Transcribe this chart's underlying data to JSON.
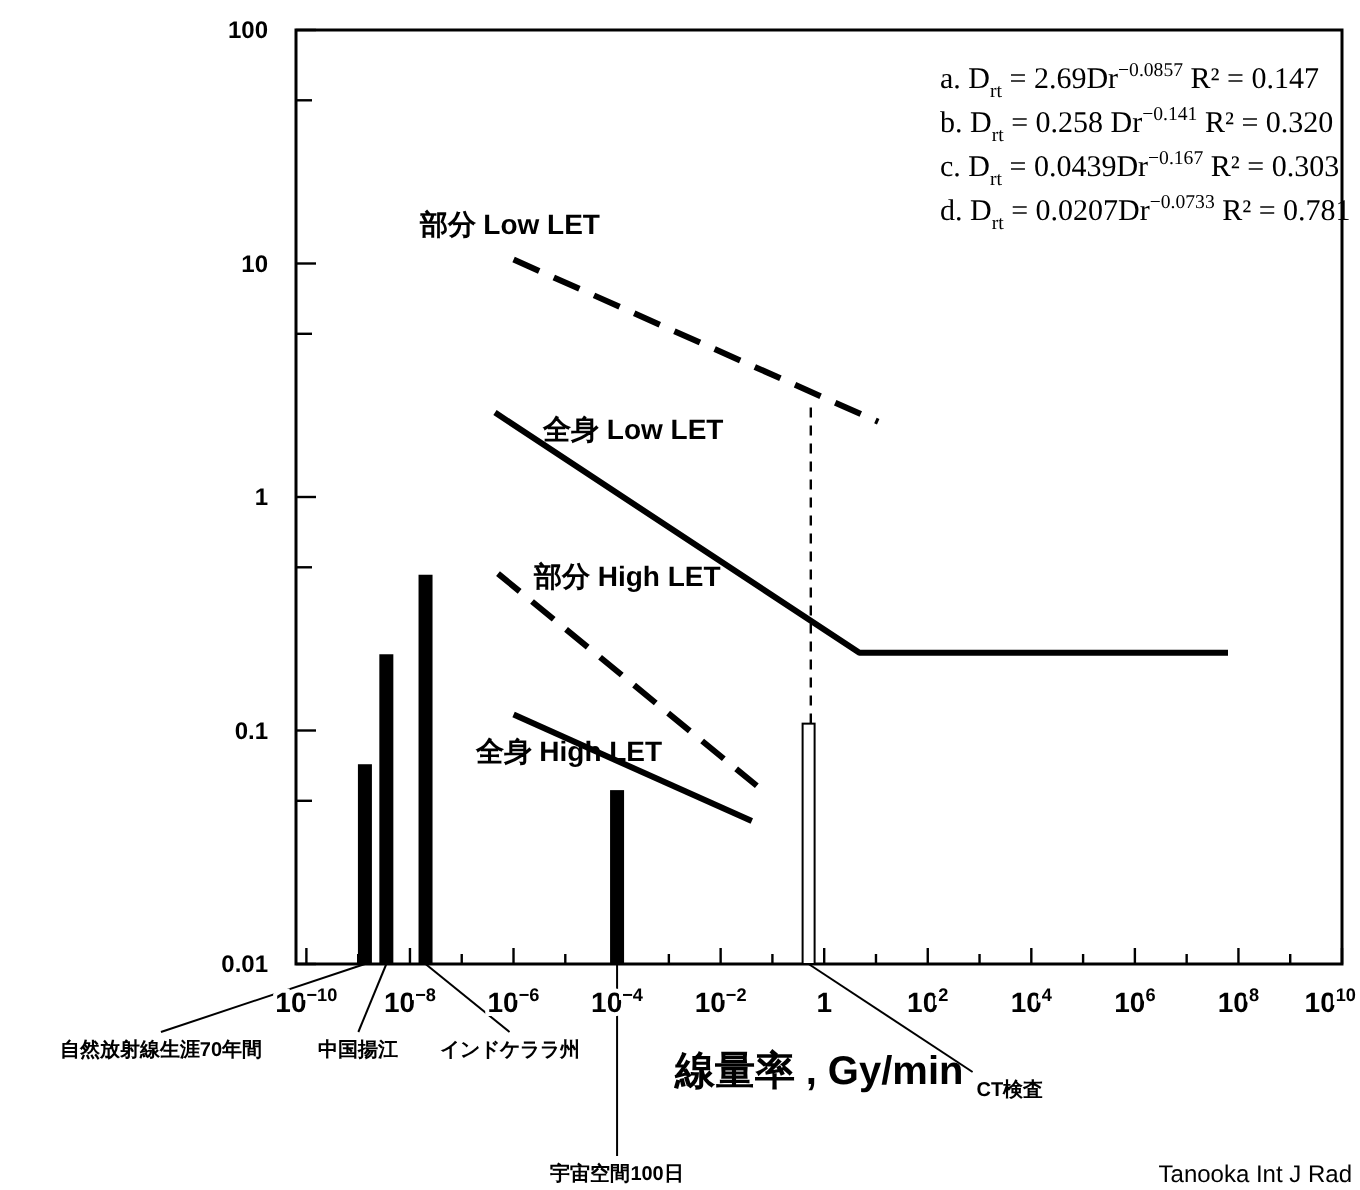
{
  "chart_data": {
    "type": "line",
    "xlabel": "線量率 , Gy/min",
    "log": "xy",
    "legend": false,
    "grid": false,
    "xlim": [
      6.3e-11,
      10000000000.0
    ],
    "ylim": [
      0.01,
      100
    ],
    "xticks": [
      {
        "value": 1e-10,
        "label": "10$^{−10}$"
      },
      {
        "value": 1e-09,
        "label": null
      },
      {
        "value": 1e-08,
        "label": "10$^{−8}$"
      },
      {
        "value": 1e-07,
        "label": null
      },
      {
        "value": 1e-06,
        "label": "10$^{−6}$"
      },
      {
        "value": 1e-05,
        "label": null
      },
      {
        "value": 0.0001,
        "label": "10$^{−4}$"
      },
      {
        "value": 0.001,
        "label": null
      },
      {
        "value": 0.01,
        "label": "10$^{−2}$"
      },
      {
        "value": 0.1,
        "label": null
      },
      1,
      {
        "value": 10,
        "label": null
      },
      {
        "value": 100,
        "label": "10$^{2}$"
      },
      {
        "value": 1000,
        "label": null
      },
      {
        "value": 10000.0,
        "label": "10$^{4}$"
      },
      {
        "value": 100000.0,
        "label": null
      },
      {
        "value": 1000000.0,
        "label": "10$^{6}$"
      },
      {
        "value": 10000000.0,
        "label": null
      },
      {
        "value": 100000000.0,
        "label": "10$^{8}$"
      },
      {
        "value": 1000000000.0,
        "label": null
      },
      {
        "value": 10000000000.0,
        "label": "10$^{10}$"
      }
    ],
    "yticks": [
      0.01,
      {
        "value": 0.05,
        "label": null
      },
      0.1,
      {
        "value": 0.5,
        "label": null
      },
      1,
      {
        "value": 5,
        "label": null
      },
      10,
      {
        "value": 50,
        "label": null
      },
      100
    ],
    "series": [
      {
        "name": "部分 Low LET",
        "line_style": "dashed",
        "color": "#000000",
        "x": [
          1e-06,
          11
        ],
        "values": [
          10.4,
          2.1
        ]
      },
      {
        "name": "全身 Low LET",
        "line_style": "solid",
        "color": "#000000",
        "x": [
          4.4e-07,
          4.8,
          63000000.0
        ],
        "values": [
          2.3,
          0.215,
          0.215
        ]
      },
      {
        "name": "部分 High LET",
        "line_style": "dashed",
        "color": "#000000",
        "x": [
          5e-07,
          0.05
        ],
        "values": [
          0.47,
          0.058
        ]
      },
      {
        "name": "全身 High LET",
        "line_style": "solid",
        "color": "#000000",
        "x": [
          1e-06,
          0.04
        ],
        "values": [
          0.117,
          0.041
        ]
      },
      {
        "line_style": "dashed",
        "color": "#000000",
        "x": [
          0.55,
          0.55
        ],
        "values": [
          0.107,
          2.6
        ]
      },
      {
        "type": "bar",
        "x": [
          1.35e-09,
          3.5e-09,
          2e-08,
          0.0001,
          0.5
        ],
        "values": [
          0.071,
          0.21,
          0.46,
          0.055,
          0.107
        ],
        "colors": [
          "#000000",
          "#000000",
          "#000000",
          "#000000",
          "#ffffff"
        ]
      }
    ],
    "annotations": [
      "a.     D$_{rt}$ = 2.69Dr$^{−0.0857}$  R² = 0.147",
      "b.     D$_{rt}$ = 0.258 Dr$^{−0.141}$  R² = 0.320",
      "c.     D$_{rt}$ = 0.0439Dr$^{−0.167}$  R² = 0.303",
      "d.     D$_{rt}$ = 0.0207Dr$^{−0.0733}$  R² = 0.781",
      {
        "text": "自然放射線生涯70年間",
        "x": 1.35e-09,
        "y": 0.01
      },
      {
        "text": "中国揚江",
        "x": 3.5e-09,
        "y": 0.01
      },
      {
        "text": "インドケララ州",
        "x": 2e-08,
        "y": 0.01
      },
      {
        "text": "宇宙空間100日",
        "x": 0.0001,
        "y": 0.01
      },
      {
        "text": "CT検査",
        "x": 0.5,
        "y": 0.01
      },
      "Tanooka Int J Rad"
    ]
  }
}
